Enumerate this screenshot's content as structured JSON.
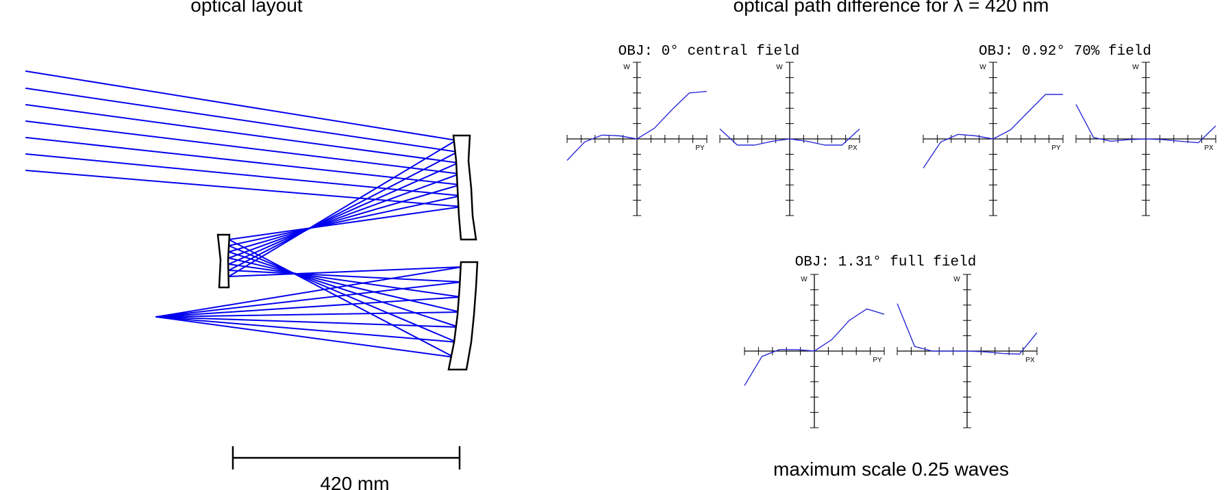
{
  "layout_panel": {
    "title": "optical layout",
    "scale_bar_label": "420 mm"
  },
  "opd_panel": {
    "title": "optical path difference for λ = 420 nm",
    "footer": "maximum scale 0.25 waves",
    "ray_color": "#0000ee",
    "curve_color": "#2a2ad8",
    "axis_labels": {
      "vertical": "W",
      "tangential": "PY",
      "sagittal": "PX"
    }
  },
  "chart_data": [
    {
      "type": "line",
      "title": "OBJ: 0° central field",
      "series": [
        {
          "name": "PY",
          "x": [
            -1,
            -0.75,
            -0.5,
            -0.25,
            0,
            0.25,
            0.5,
            0.75,
            1
          ],
          "y": [
            -0.28,
            -0.04,
            0.05,
            0.04,
            0,
            0.14,
            0.38,
            0.6,
            0.62
          ]
        },
        {
          "name": "PX",
          "x": [
            -1,
            -0.75,
            -0.5,
            -0.25,
            0,
            0.25,
            0.5,
            0.75,
            1
          ],
          "y": [
            0.13,
            -0.08,
            -0.08,
            -0.03,
            0,
            -0.03,
            -0.08,
            -0.08,
            0.13
          ]
        }
      ],
      "ylim": [
        -1,
        1
      ]
    },
    {
      "type": "line",
      "title": "OBJ: 0.92° 70% field",
      "series": [
        {
          "name": "PY",
          "x": [
            -1,
            -0.75,
            -0.5,
            -0.25,
            0,
            0.25,
            0.5,
            0.75,
            1
          ],
          "y": [
            -0.38,
            -0.04,
            0.06,
            0.04,
            0,
            0.12,
            0.35,
            0.58,
            0.58
          ]
        },
        {
          "name": "PX",
          "x": [
            -1,
            -0.75,
            -0.5,
            -0.25,
            0,
            0.25,
            0.5,
            0.75,
            1
          ],
          "y": [
            0.45,
            0.02,
            -0.03,
            -0.01,
            0,
            -0.01,
            -0.03,
            -0.05,
            0.17
          ]
        }
      ],
      "ylim": [
        -1,
        1
      ]
    },
    {
      "type": "line",
      "title": "OBJ: 1.31° full field",
      "series": [
        {
          "name": "PY",
          "x": [
            -1,
            -0.75,
            -0.5,
            -0.25,
            0,
            0.25,
            0.5,
            0.75,
            1
          ],
          "y": [
            -0.45,
            -0.07,
            0.02,
            0.02,
            0,
            0.15,
            0.4,
            0.55,
            0.48
          ]
        },
        {
          "name": "PX",
          "x": [
            -1,
            -0.75,
            -0.5,
            -0.25,
            0,
            0.25,
            0.5,
            0.75,
            1
          ],
          "y": [
            0.62,
            0.06,
            0.0,
            0.0,
            0,
            -0.01,
            -0.03,
            -0.04,
            0.24
          ]
        }
      ],
      "ylim": [
        -1,
        1
      ]
    }
  ]
}
